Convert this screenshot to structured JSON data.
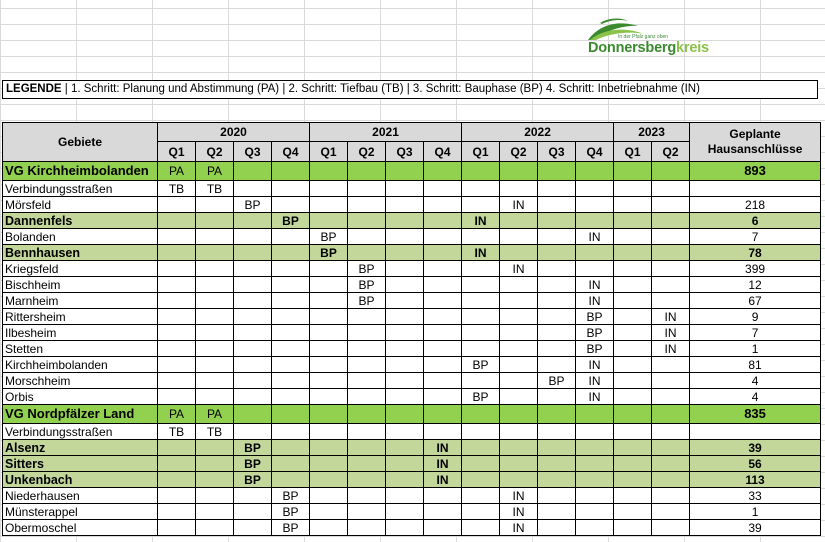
{
  "logo": {
    "tagline": "In der Pfalz ganz oben",
    "name_main": "Donnersberg",
    "name_accent": "kreis",
    "colors": {
      "dark_green": "#3b8a2f",
      "light_green": "#8bc34a",
      "hill_light": "#c5e1a5"
    }
  },
  "legend": {
    "label": "LEGENDE",
    "text": " | 1. Schritt: Planung und Abstimmung (PA) | 2. Schritt: Tiefbau (TB) | 3. Schritt: Bauphase (BP)  4. Schritt: Inbetriebnahme (IN)"
  },
  "table": {
    "area_header": "Gebiete",
    "total_header": "Geplante Hausanschlüsse",
    "years": [
      {
        "label": "2020",
        "span": 4
      },
      {
        "label": "2021",
        "span": 4
      },
      {
        "label": "2022",
        "span": 4
      },
      {
        "label": "2023",
        "span": 2
      }
    ],
    "quarters": [
      "Q1",
      "Q2",
      "Q3",
      "Q4",
      "Q1",
      "Q2",
      "Q3",
      "Q4",
      "Q1",
      "Q2",
      "Q3",
      "Q4",
      "Q1",
      "Q2"
    ],
    "colors": {
      "header_gray": "#d9d9d9",
      "vg_green": "#92d050",
      "sub_green": "#c4d79b"
    },
    "rows": [
      {
        "type": "vg",
        "name": "VG Kirchheimbolanden",
        "cells": [
          "PA",
          "PA",
          "",
          "",
          "",
          "",
          "",
          "",
          "",
          "",
          "",
          "",
          "",
          ""
        ],
        "total": "893"
      },
      {
        "type": "plain",
        "name": "Verbindungsstraßen",
        "cells": [
          "TB",
          "TB",
          "",
          "",
          "",
          "",
          "",
          "",
          "",
          "",
          "",
          "",
          "",
          ""
        ],
        "total": ""
      },
      {
        "type": "plain",
        "name": "Mörsfeld",
        "cells": [
          "",
          "",
          "BP",
          "",
          "",
          "",
          "",
          "",
          "",
          "IN",
          "",
          "",
          "",
          ""
        ],
        "total": "218"
      },
      {
        "type": "sub",
        "name": "Dannenfels",
        "cells": [
          "",
          "",
          "",
          "BP",
          "",
          "",
          "",
          "",
          "IN",
          "",
          "",
          "",
          "",
          ""
        ],
        "total": "6"
      },
      {
        "type": "plain",
        "name": "Bolanden",
        "cells": [
          "",
          "",
          "",
          "",
          "BP",
          "",
          "",
          "",
          "",
          "",
          "",
          "IN",
          "",
          ""
        ],
        "total": "7"
      },
      {
        "type": "sub",
        "name": "Bennhausen",
        "cells": [
          "",
          "",
          "",
          "",
          "BP",
          "",
          "",
          "",
          "IN",
          "",
          "",
          "",
          "",
          ""
        ],
        "total": "78"
      },
      {
        "type": "plain",
        "name": "Kriegsfeld",
        "cells": [
          "",
          "",
          "",
          "",
          "",
          "BP",
          "",
          "",
          "",
          "IN",
          "",
          "",
          "",
          ""
        ],
        "total": "399"
      },
      {
        "type": "plain",
        "name": "Bischheim",
        "cells": [
          "",
          "",
          "",
          "",
          "",
          "BP",
          "",
          "",
          "",
          "",
          "",
          "IN",
          "",
          ""
        ],
        "total": "12"
      },
      {
        "type": "plain",
        "name": "Marnheim",
        "cells": [
          "",
          "",
          "",
          "",
          "",
          "BP",
          "",
          "",
          "",
          "",
          "",
          "IN",
          "",
          ""
        ],
        "total": "67"
      },
      {
        "type": "plain",
        "name": "Rittersheim",
        "cells": [
          "",
          "",
          "",
          "",
          "",
          "",
          "",
          "",
          "",
          "",
          "",
          "BP",
          "",
          "IN"
        ],
        "total": "9"
      },
      {
        "type": "plain",
        "name": "Ilbesheim",
        "cells": [
          "",
          "",
          "",
          "",
          "",
          "",
          "",
          "",
          "",
          "",
          "",
          "BP",
          "",
          "IN"
        ],
        "total": "7"
      },
      {
        "type": "plain",
        "name": "Stetten",
        "cells": [
          "",
          "",
          "",
          "",
          "",
          "",
          "",
          "",
          "",
          "",
          "",
          "BP",
          "",
          "IN"
        ],
        "total": "1"
      },
      {
        "type": "plain",
        "name": "Kirchheimbolanden",
        "cells": [
          "",
          "",
          "",
          "",
          "",
          "",
          "",
          "",
          "BP",
          "",
          "",
          "IN",
          "",
          ""
        ],
        "total": "81"
      },
      {
        "type": "plain",
        "name": "Morschheim",
        "cells": [
          "",
          "",
          "",
          "",
          "",
          "",
          "",
          "",
          "",
          "",
          "BP",
          "IN",
          "",
          ""
        ],
        "total": "4"
      },
      {
        "type": "plain",
        "name": "Orbis",
        "cells": [
          "",
          "",
          "",
          "",
          "",
          "",
          "",
          "",
          "BP",
          "",
          "",
          "IN",
          "",
          ""
        ],
        "total": "4"
      },
      {
        "type": "vg",
        "name": "VG Nordpfälzer Land",
        "cells": [
          "PA",
          "PA",
          "",
          "",
          "",
          "",
          "",
          "",
          "",
          "",
          "",
          "",
          "",
          ""
        ],
        "total": "835"
      },
      {
        "type": "plain",
        "name": "Verbindungsstraßen",
        "cells": [
          "TB",
          "TB",
          "",
          "",
          "",
          "",
          "",
          "",
          "",
          "",
          "",
          "",
          "",
          ""
        ],
        "total": ""
      },
      {
        "type": "sub",
        "name": "Alsenz",
        "cells": [
          "",
          "",
          "BP",
          "",
          "",
          "",
          "",
          "IN",
          "",
          "",
          "",
          "",
          "",
          ""
        ],
        "total": "39"
      },
      {
        "type": "sub",
        "name": "Sitters",
        "cells": [
          "",
          "",
          "BP",
          "",
          "",
          "",
          "",
          "IN",
          "",
          "",
          "",
          "",
          "",
          ""
        ],
        "total": "56"
      },
      {
        "type": "sub",
        "name": "Unkenbach",
        "cells": [
          "",
          "",
          "BP",
          "",
          "",
          "",
          "",
          "IN",
          "",
          "",
          "",
          "",
          "",
          ""
        ],
        "total": "113"
      },
      {
        "type": "plain",
        "name": "Niederhausen",
        "cells": [
          "",
          "",
          "",
          "BP",
          "",
          "",
          "",
          "",
          "",
          "IN",
          "",
          "",
          "",
          ""
        ],
        "total": "33"
      },
      {
        "type": "plain",
        "name": "Münsterappel",
        "cells": [
          "",
          "",
          "",
          "BP",
          "",
          "",
          "",
          "",
          "",
          "IN",
          "",
          "",
          "",
          ""
        ],
        "total": "1"
      },
      {
        "type": "plain",
        "name": "Obermoschel",
        "cells": [
          "",
          "",
          "",
          "BP",
          "",
          "",
          "",
          "",
          "",
          "IN",
          "",
          "",
          "",
          ""
        ],
        "total": "39"
      }
    ]
  }
}
